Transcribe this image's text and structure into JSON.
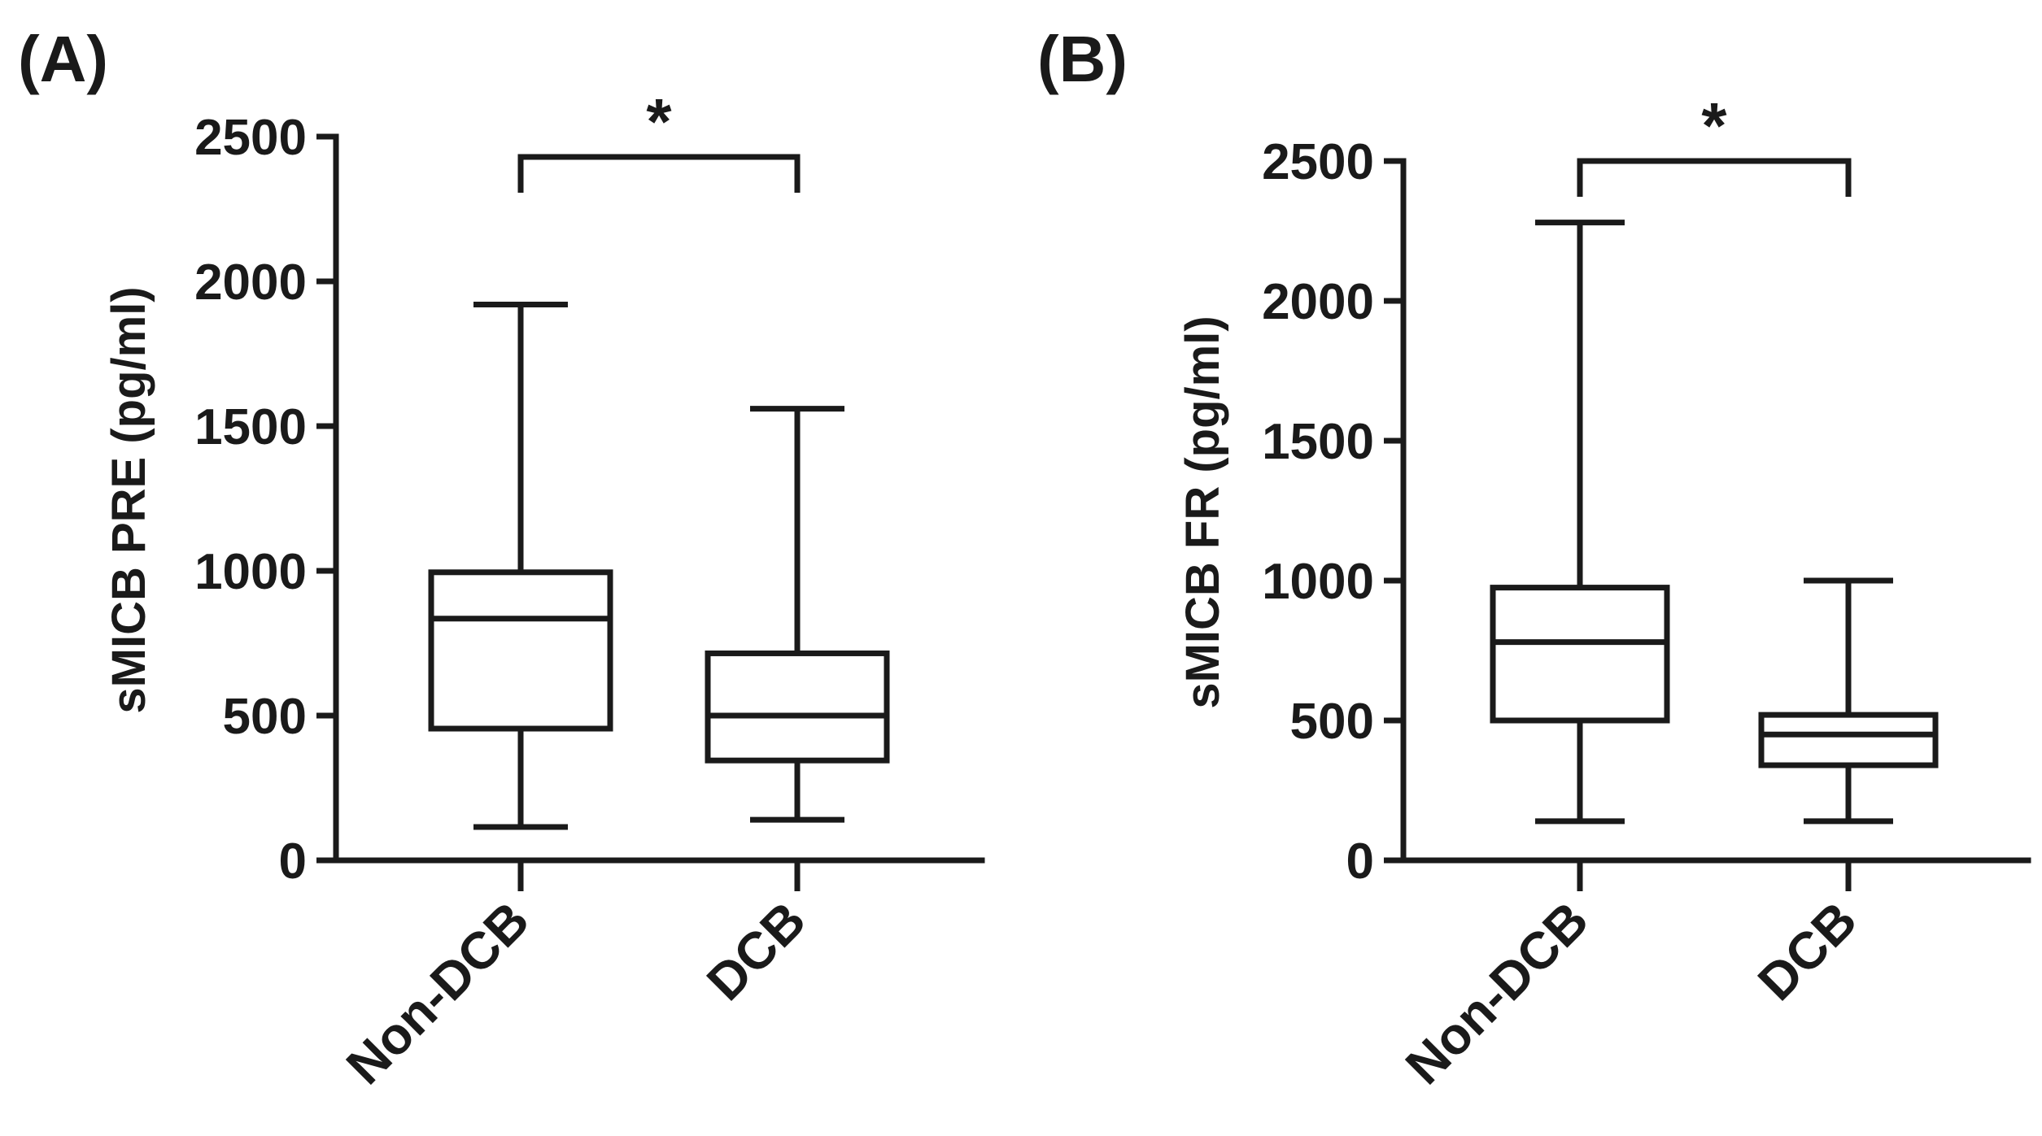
{
  "chart_data": [
    {
      "type": "boxplot",
      "panel_label": "(A)",
      "ylabel": "sMICB PRE (pg/ml)",
      "ylim": [
        0,
        2500
      ],
      "yticks": [
        0,
        500,
        1000,
        1500,
        2000,
        2500
      ],
      "categories": [
        "Non-DCB",
        "DCB"
      ],
      "boxes": [
        {
          "name": "Non-DCB",
          "min": 115,
          "q1": 455,
          "median": 835,
          "q3": 995,
          "max": 1920,
          "pattern": "none"
        },
        {
          "name": "DCB",
          "min": 140,
          "q1": 345,
          "median": 500,
          "q3": 715,
          "max": 1560,
          "pattern": "checker"
        }
      ],
      "significance": {
        "between": [
          "Non-DCB",
          "DCB"
        ],
        "label": "*"
      }
    },
    {
      "type": "boxplot",
      "panel_label": "(B)",
      "ylabel": "sMICB FR (pg/ml)",
      "ylim": [
        0,
        2500
      ],
      "yticks": [
        0,
        500,
        1000,
        1500,
        2000,
        2500
      ],
      "categories": [
        "Non-DCB",
        "DCB"
      ],
      "boxes": [
        {
          "name": "Non-DCB",
          "min": 140,
          "q1": 500,
          "median": 780,
          "q3": 975,
          "max": 2280,
          "pattern": "none"
        },
        {
          "name": "DCB",
          "min": 140,
          "q1": 340,
          "median": 450,
          "q3": 520,
          "max": 1000,
          "pattern": "checker"
        }
      ],
      "significance": {
        "between": [
          "Non-DCB",
          "DCB"
        ],
        "label": "*"
      }
    }
  ]
}
